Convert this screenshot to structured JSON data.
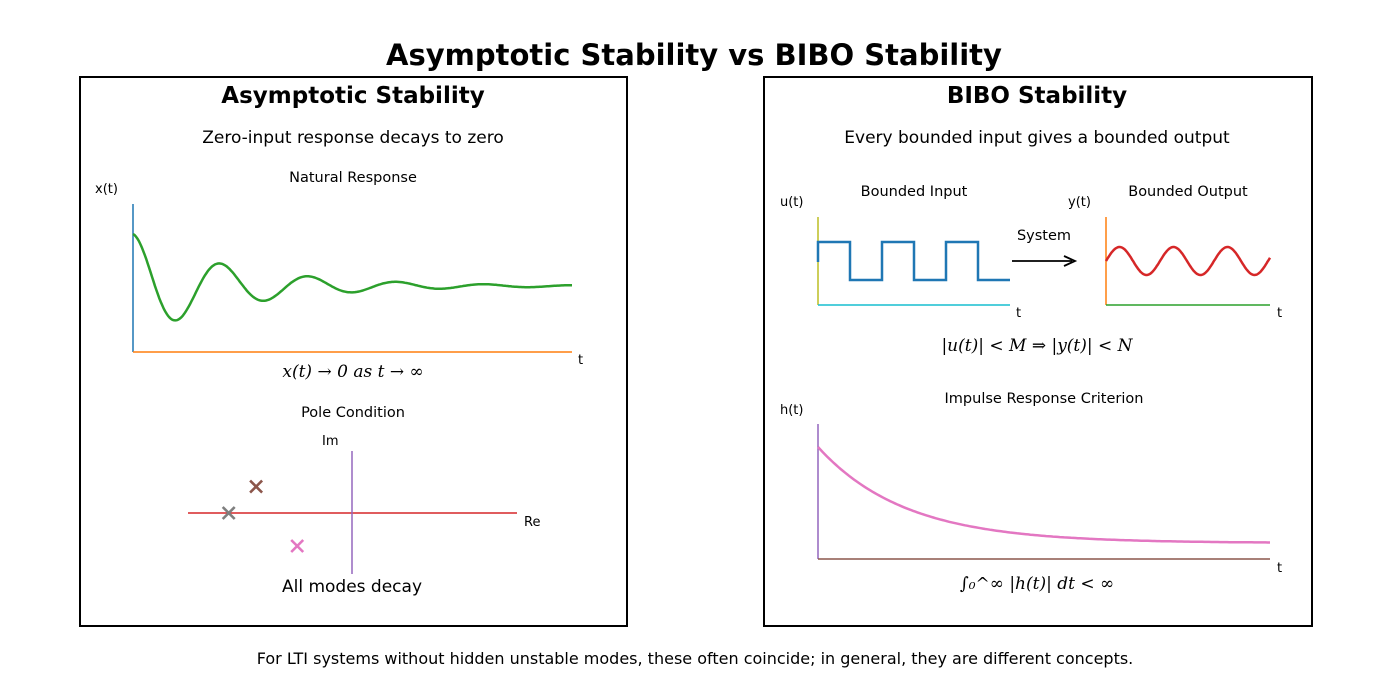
{
  "title": "Asymptotic Stability vs BIBO Stability",
  "footer": "For LTI systems without hidden unstable modes, these often coincide; in general, they are different concepts.",
  "left": {
    "heading": "Asymptotic Stability",
    "subheading": "Zero-input response decays to zero",
    "natural_response": {
      "title": "Natural Response",
      "ylabel": "x(t)",
      "xlabel": "t",
      "equation": "x(t) → 0 as t → ∞",
      "line_color": "#2ca02c",
      "yaxis_color": "#1f77b4",
      "xaxis_color": "#ff7f0e"
    },
    "pole_condition": {
      "title": "Pole Condition",
      "im_label": "Im",
      "re_label": "Re",
      "caption": "All modes decay",
      "real_axis_color": "#d62728",
      "imag_axis_color": "#9467bd",
      "marker": "×",
      "poles": [
        {
          "re": -0.7,
          "im": 0.6,
          "color": "#8c564b"
        },
        {
          "re": -0.9,
          "im": 0.0,
          "color": "#7f7f7f"
        },
        {
          "re": -0.4,
          "im": -0.75,
          "color": "#e377c2"
        }
      ]
    }
  },
  "right": {
    "heading": "BIBO Stability",
    "subheading": "Every bounded input gives a bounded output",
    "input_plot": {
      "title": "Bounded Input",
      "ylabel": "u(t)",
      "xlabel": "t",
      "line_color": "#1f77b4",
      "yaxis_color": "#bcbd22",
      "xaxis_color": "#17becf"
    },
    "system_label": "System",
    "output_plot": {
      "title": "Bounded Output",
      "ylabel": "y(t)",
      "xlabel": "t",
      "line_color": "#d62728",
      "yaxis_color": "#ff7f0e",
      "xaxis_color": "#2ca02c"
    },
    "bound_equation": "|u(t)| < M ⇒ |y(t)| < N",
    "impulse": {
      "title": "Impulse Response Criterion",
      "ylabel": "h(t)",
      "xlabel": "t",
      "line_color": "#e377c2",
      "yaxis_color": "#9467bd",
      "xaxis_color": "#8c564b",
      "criterion": "∫₀^∞ |h(t)| dt < ∞"
    }
  }
}
